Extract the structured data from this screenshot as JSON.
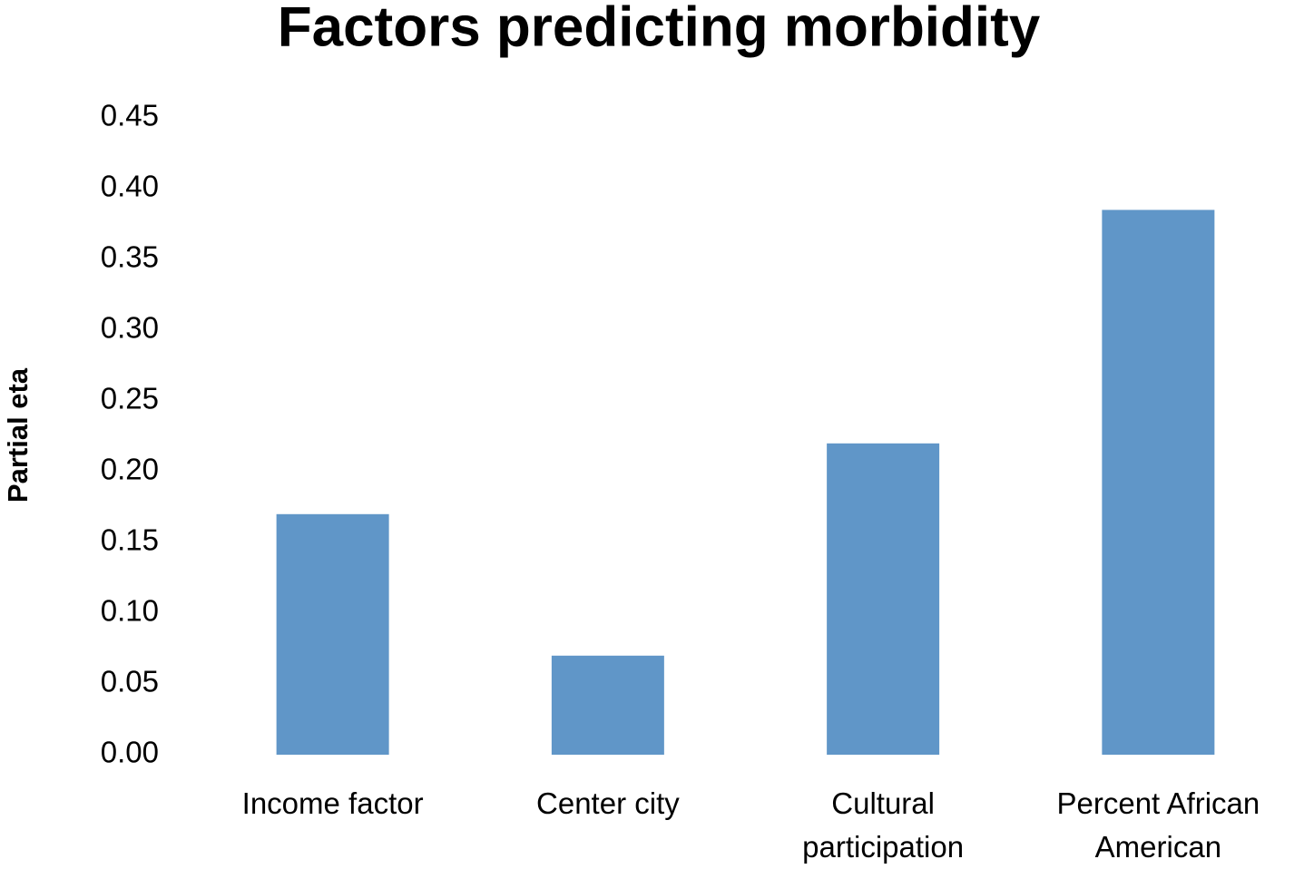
{
  "chart_data": {
    "type": "bar",
    "title": "Factors predicting morbidity",
    "y_label": "Partial eta",
    "categories": [
      "Income factor",
      "Center city",
      "Cultural participation",
      "Percent African American"
    ],
    "values": [
      0.17,
      0.07,
      0.22,
      0.385
    ],
    "color": "#6096c8",
    "ylim": [
      0,
      0.45
    ],
    "yticks": [
      {
        "value": 0,
        "label": "0.00"
      },
      0.05,
      {
        "value": 0.1,
        "label": "0.10"
      },
      0.15,
      {
        "value": 0.2,
        "label": "0.20"
      },
      0.25,
      {
        "value": 0.3,
        "label": "0.30"
      },
      0.35,
      {
        "value": 0.4,
        "label": "0.40"
      },
      0.45
    ],
    "grid": false
  }
}
